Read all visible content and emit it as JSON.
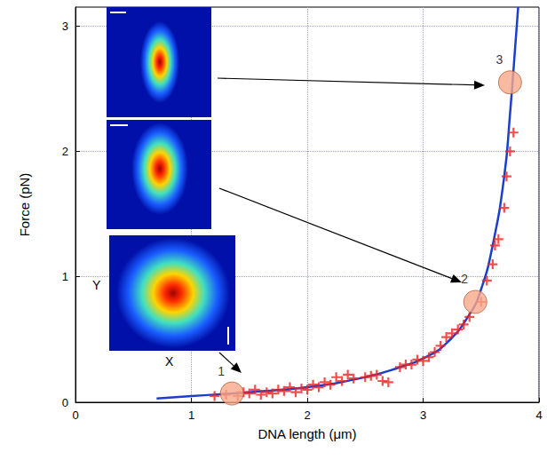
{
  "chart_data": {
    "type": "scatter",
    "x_label": "DNA length (μm)",
    "y_label": "Force (pN)",
    "xlim": [
      0,
      4
    ],
    "ylim": [
      0,
      3.15
    ],
    "xticks": [
      0,
      1,
      2,
      3,
      4
    ],
    "yticks": [
      0,
      1,
      2,
      3
    ],
    "grid": true,
    "series": [
      {
        "type": "line",
        "color": "#1a3fcc",
        "line_style": "solid",
        "x": [
          0.7,
          1.0,
          1.5,
          2.0,
          2.5,
          2.8,
          3.0,
          3.2,
          3.4,
          3.5,
          3.6,
          3.7,
          3.75,
          3.8,
          3.82
        ],
        "values": [
          0.03,
          0.05,
          0.08,
          0.12,
          0.2,
          0.28,
          0.35,
          0.47,
          0.7,
          0.9,
          1.25,
          1.8,
          2.3,
          2.9,
          3.15
        ]
      },
      {
        "type": "scatter",
        "color": "#ee2222",
        "marker": "plus",
        "x": [
          1.2,
          1.3,
          1.4,
          1.45,
          1.5,
          1.55,
          1.6,
          1.65,
          1.7,
          1.75,
          1.8,
          1.85,
          1.9,
          1.95,
          2.0,
          2.05,
          2.1,
          2.15,
          2.2,
          2.25,
          2.3,
          2.35,
          2.4,
          2.5,
          2.55,
          2.6,
          2.65,
          2.7,
          2.8,
          2.85,
          2.9,
          2.95,
          3.0,
          3.05,
          3.1,
          3.15,
          3.2,
          3.25,
          3.3,
          3.35,
          3.4,
          3.5,
          3.55,
          3.6,
          3.62,
          3.65,
          3.7,
          3.72,
          3.75,
          3.78
        ],
        "values": [
          0.05,
          0.06,
          0.05,
          0.08,
          0.07,
          0.1,
          0.06,
          0.08,
          0.07,
          0.1,
          0.09,
          0.12,
          0.08,
          0.11,
          0.1,
          0.14,
          0.12,
          0.16,
          0.14,
          0.2,
          0.17,
          0.22,
          0.19,
          0.2,
          0.21,
          0.22,
          0.17,
          0.16,
          0.28,
          0.3,
          0.3,
          0.34,
          0.33,
          0.36,
          0.4,
          0.45,
          0.52,
          0.55,
          0.58,
          0.62,
          0.68,
          0.8,
          0.97,
          1.1,
          1.25,
          1.3,
          1.55,
          1.8,
          2.0,
          2.15
        ]
      },
      {
        "type": "scatter",
        "color": "#f7a98a",
        "marker": "circle",
        "x": [
          1.35,
          3.45,
          3.75
        ],
        "values": [
          0.07,
          0.8,
          2.55
        ],
        "point_labels": [
          "1",
          "2",
          "3"
        ]
      }
    ],
    "inset_labels": {
      "x": "X",
      "y": "Y"
    }
  }
}
